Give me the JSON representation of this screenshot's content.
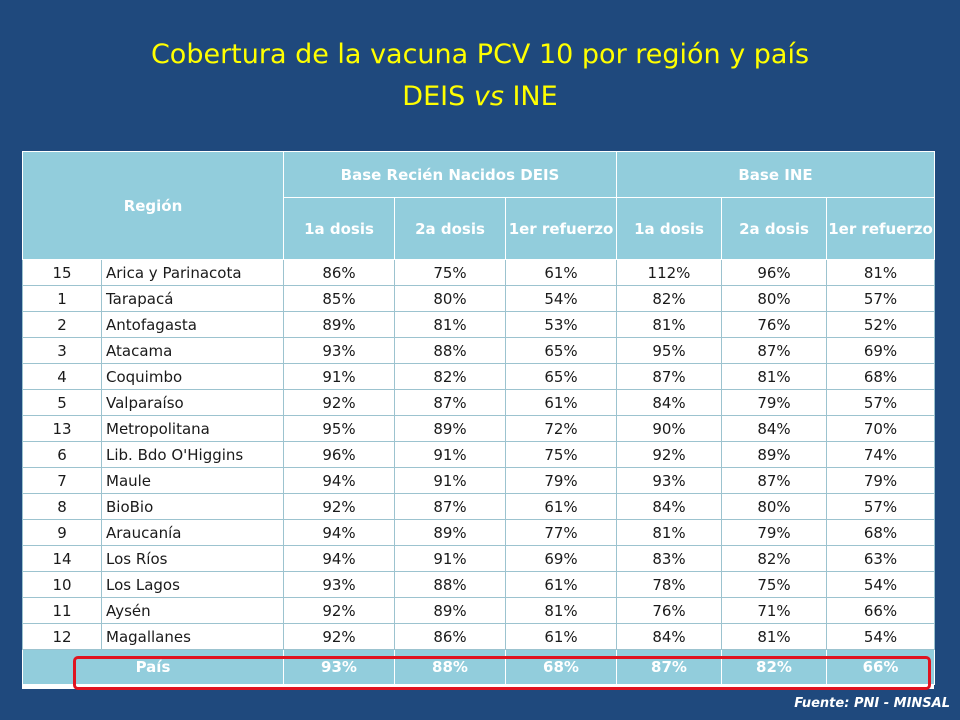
{
  "title": {
    "line1": "Cobertura de la vacuna PCV 10 por región y país",
    "line2_pre": "DEIS ",
    "line2_it": "vs",
    "line2_post": " INE"
  },
  "header": {
    "region": "Región",
    "group_deis": "Base Recién Nacidos DEIS",
    "group_ine": "Base INE",
    "cols": [
      "1a dosis",
      "2a dosis",
      "1er refuerzo",
      "1a dosis",
      "2a dosis",
      "1er refuerzo"
    ]
  },
  "rows": [
    {
      "num": "15",
      "region": "Arica y Parinacota",
      "vals": [
        "86%",
        "75%",
        "61%",
        "112%",
        "96%",
        "81%"
      ]
    },
    {
      "num": "1",
      "region": "Tarapacá",
      "vals": [
        "85%",
        "80%",
        "54%",
        "82%",
        "80%",
        "57%"
      ]
    },
    {
      "num": "2",
      "region": "Antofagasta",
      "vals": [
        "89%",
        "81%",
        "53%",
        "81%",
        "76%",
        "52%"
      ]
    },
    {
      "num": "3",
      "region": "Atacama",
      "vals": [
        "93%",
        "88%",
        "65%",
        "95%",
        "87%",
        "69%"
      ]
    },
    {
      "num": "4",
      "region": "Coquimbo",
      "vals": [
        "91%",
        "82%",
        "65%",
        "87%",
        "81%",
        "68%"
      ]
    },
    {
      "num": "5",
      "region": "Valparaíso",
      "vals": [
        "92%",
        "87%",
        "61%",
        "84%",
        "79%",
        "57%"
      ]
    },
    {
      "num": "13",
      "region": "Metropolitana",
      "vals": [
        "95%",
        "89%",
        "72%",
        "90%",
        "84%",
        "70%"
      ]
    },
    {
      "num": "6",
      "region": "Lib. Bdo O'Higgins",
      "vals": [
        "96%",
        "91%",
        "75%",
        "92%",
        "89%",
        "74%"
      ]
    },
    {
      "num": "7",
      "region": "Maule",
      "vals": [
        "94%",
        "91%",
        "79%",
        "93%",
        "87%",
        "79%"
      ]
    },
    {
      "num": "8",
      "region": "BioBio",
      "vals": [
        "92%",
        "87%",
        "61%",
        "84%",
        "80%",
        "57%"
      ]
    },
    {
      "num": "9",
      "region": "Araucanía",
      "vals": [
        "94%",
        "89%",
        "77%",
        "81%",
        "79%",
        "68%"
      ]
    },
    {
      "num": "14",
      "region": "Los Ríos",
      "vals": [
        "94%",
        "91%",
        "69%",
        "83%",
        "82%",
        "63%"
      ]
    },
    {
      "num": "10",
      "region": "Los Lagos",
      "vals": [
        "93%",
        "88%",
        "61%",
        "78%",
        "75%",
        "54%"
      ]
    },
    {
      "num": "11",
      "region": "Aysén",
      "vals": [
        "92%",
        "89%",
        "81%",
        "76%",
        "71%",
        "66%"
      ]
    },
    {
      "num": "12",
      "region": "Magallanes",
      "vals": [
        "92%",
        "86%",
        "61%",
        "84%",
        "81%",
        "54%"
      ]
    }
  ],
  "total": {
    "label": "País",
    "vals": [
      "93%",
      "88%",
      "68%",
      "87%",
      "82%",
      "66%"
    ]
  },
  "source": "Fuente:  PNI - MINSAL",
  "colors": {
    "background": "#1f497d",
    "title": "#ffff00",
    "header": "#92cddc",
    "highlight": "#e0131f"
  }
}
